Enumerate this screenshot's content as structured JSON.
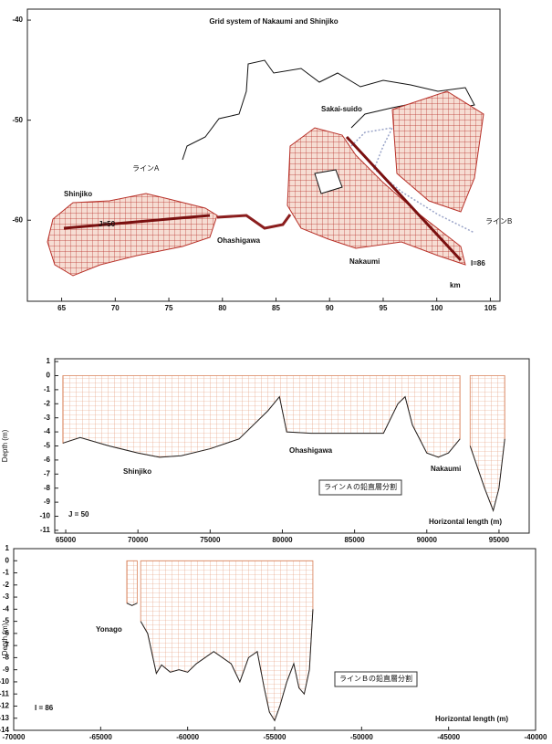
{
  "chart_data": [
    {
      "type": "map",
      "title": "Grid system of Nakaumi and Shinjiko",
      "xlim": [
        61.8,
        105.9
      ],
      "xticks": [
        65,
        70,
        75,
        80,
        85,
        90,
        95,
        100,
        105
      ],
      "ylim": [
        -68.1,
        -38.9
      ],
      "yticks": [
        -40,
        -50,
        -60
      ],
      "annotations": [
        "Sakai-suido",
        "Shinjiko",
        "ラインA",
        "J=50",
        "Ohashigawa",
        "Nakaumi",
        "ラインB",
        "I=86",
        "km"
      ]
    },
    {
      "type": "section",
      "xlabel": "Horizontal length (m)",
      "ylabel": "Depth (m)",
      "xlim": [
        64240,
        97090
      ],
      "xticks": [
        65000,
        70000,
        75000,
        80000,
        85000,
        90000,
        95000
      ],
      "ylim": [
        -11.2,
        1.2
      ],
      "yticks": [
        1,
        0,
        -1,
        -2,
        -3,
        -4,
        -5,
        -6,
        -7,
        -8,
        -9,
        -10,
        -11
      ],
      "x": [
        64800,
        66000,
        68000,
        70000,
        71500,
        73000,
        75000,
        77000,
        79000,
        79800,
        80300,
        82000,
        85000,
        87000,
        88000,
        88500,
        89000,
        90000,
        90800,
        91500,
        92300,
        null,
        93000,
        94000,
        94600,
        95000,
        95400
      ],
      "values": [
        -4.8,
        -4.4,
        -5.0,
        -5.5,
        -5.8,
        -5.7,
        -5.2,
        -4.5,
        -2.5,
        -1.5,
        -4.0,
        -4.1,
        -4.1,
        -4.1,
        -2.0,
        -1.5,
        -3.5,
        -5.5,
        -5.8,
        -5.5,
        -4.5,
        null,
        -5.0,
        -8.0,
        -9.6,
        -8.0,
        -4.5
      ],
      "color": "#d9825b",
      "annotations": [
        "Shinjiko",
        "Ohashigawa",
        "Nakaumi",
        "ラインＡの鉛直層分割",
        "J = 50"
      ]
    },
    {
      "type": "section",
      "xlabel": "Horizontal length (m)",
      "ylabel": "Depth (m)",
      "xlim": [
        -70000,
        -40000
      ],
      "xticks": [
        -70000,
        -65000,
        -60000,
        -55000,
        -50000,
        -45000,
        -40000
      ],
      "ylim": [
        -14,
        1
      ],
      "yticks": [
        1,
        0,
        -1,
        -2,
        -3,
        -4,
        -5,
        -6,
        -7,
        -8,
        -9,
        -10,
        -11,
        -12,
        -13,
        -14
      ],
      "x": [
        -63500,
        -63200,
        -62900,
        null,
        -62700,
        -62300,
        -61800,
        -61500,
        -61000,
        -60500,
        -60000,
        -59500,
        -58500,
        -57500,
        -57000,
        -56500,
        -56000,
        -55600,
        -55300,
        -55000,
        -54700,
        -54300,
        -53900,
        -53600,
        -53300,
        -53000,
        -52800
      ],
      "values": [
        -3.5,
        -3.7,
        -3.5,
        null,
        -5.0,
        -6.0,
        -9.3,
        -8.6,
        -9.2,
        -9.0,
        -9.2,
        -8.5,
        -7.5,
        -8.5,
        -10.0,
        -8.0,
        -7.5,
        -10.5,
        -12.5,
        -13.2,
        -12.0,
        -10.0,
        -8.5,
        -10.5,
        -11.0,
        -9.0,
        -4.0
      ],
      "color": "#d9825b",
      "annotations": [
        "Yonago",
        "ラインＢの鉛直層分割",
        "I = 86"
      ]
    }
  ]
}
